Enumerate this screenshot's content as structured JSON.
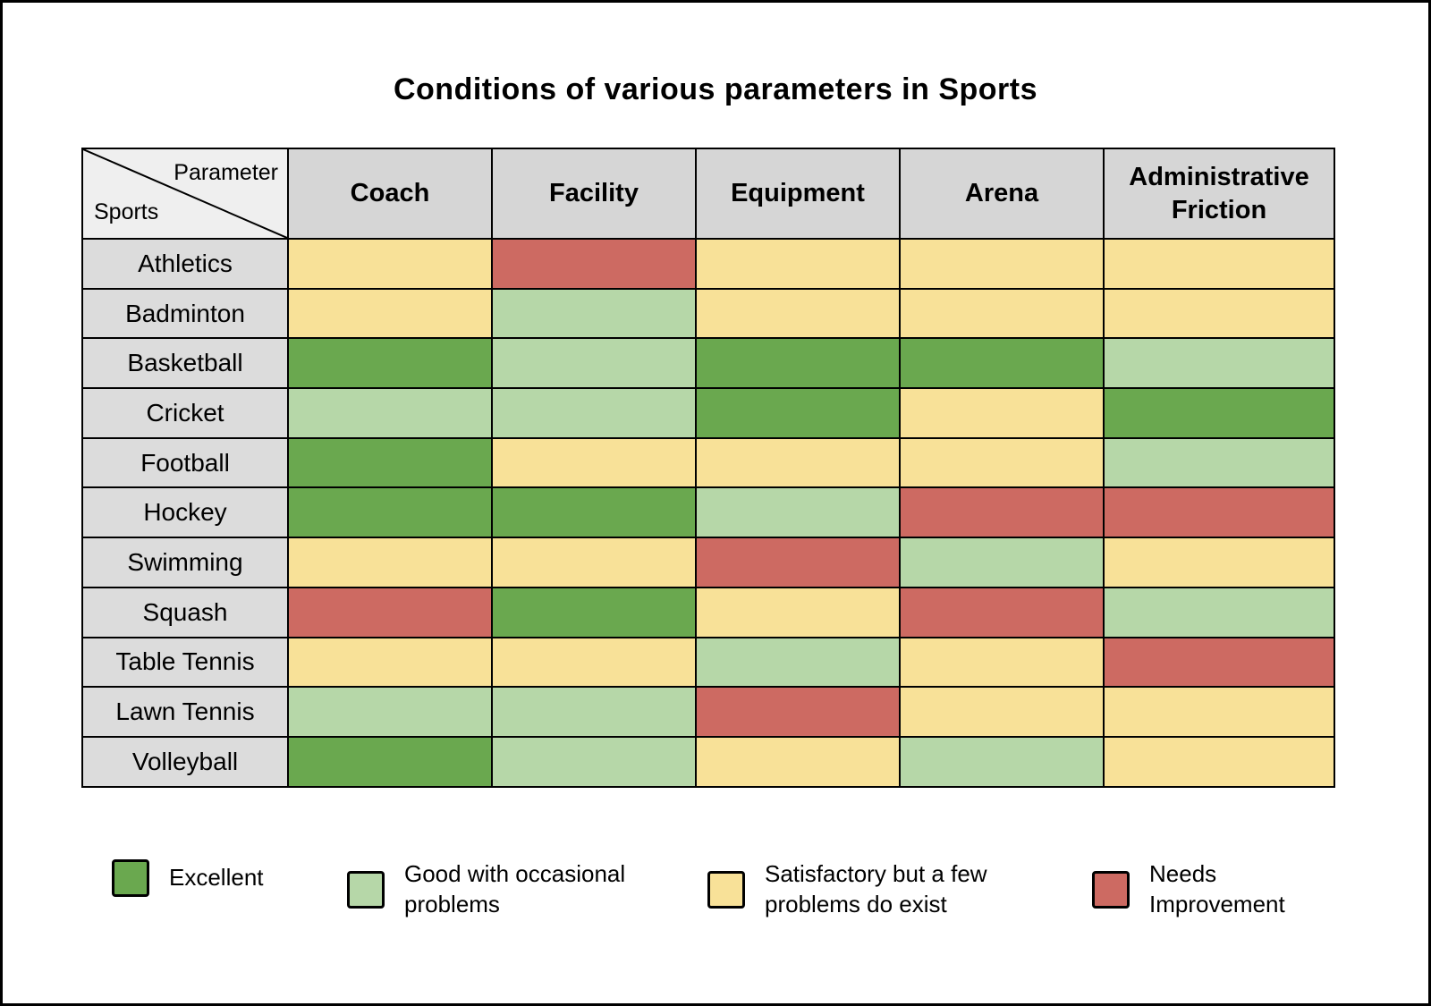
{
  "corner": {
    "top_right": "Parameter",
    "bottom_left": "Sports"
  },
  "chart_data": {
    "type": "heatmap",
    "title": "Conditions of various parameters in Sports",
    "x_categories": [
      "Coach",
      "Facility",
      "Equipment",
      "Arena",
      "Administrative Friction"
    ],
    "y_categories": [
      "Athletics",
      "Badminton",
      "Basketball",
      "Cricket",
      "Football",
      "Hockey",
      "Swimming",
      "Squash",
      "Table Tennis",
      "Lawn Tennis",
      "Volleyball"
    ],
    "values": [
      [
        "S",
        "N",
        "S",
        "S",
        "S"
      ],
      [
        "S",
        "G",
        "S",
        "S",
        "S"
      ],
      [
        "E",
        "G",
        "E",
        "E",
        "G"
      ],
      [
        "G",
        "G",
        "E",
        "S",
        "E"
      ],
      [
        "E",
        "S",
        "S",
        "S",
        "G"
      ],
      [
        "E",
        "E",
        "G",
        "N",
        "N"
      ],
      [
        "S",
        "S",
        "N",
        "G",
        "S"
      ],
      [
        "N",
        "E",
        "S",
        "N",
        "G"
      ],
      [
        "S",
        "S",
        "G",
        "S",
        "N"
      ],
      [
        "G",
        "G",
        "N",
        "S",
        "S"
      ],
      [
        "E",
        "G",
        "S",
        "G",
        "S"
      ]
    ],
    "legend": {
      "E": {
        "label": "Excellent",
        "color": "#6aa84f"
      },
      "G": {
        "label": "Good with occasional problems",
        "color": "#b6d7a8"
      },
      "S": {
        "label": "Satisfactory but a few problems do exist",
        "color": "#f8e198"
      },
      "N": {
        "label": "Needs Improvement",
        "color": "#cd6a62"
      }
    },
    "legend_position": "bottom",
    "grid": true
  }
}
